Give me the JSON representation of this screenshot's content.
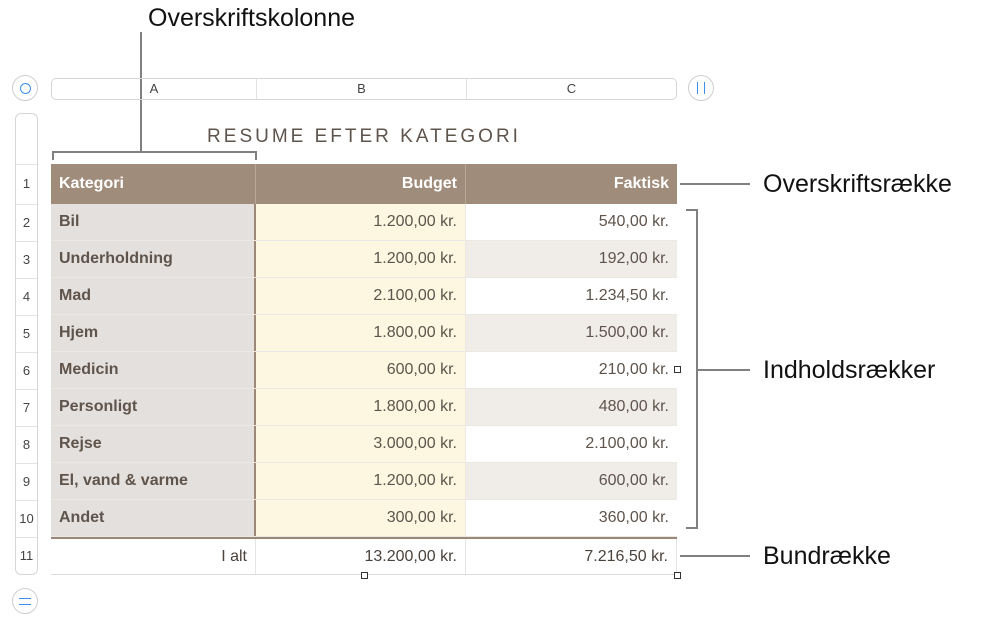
{
  "callouts": {
    "header_column": "Overskriftskolonne",
    "header_row": "Overskriftsrække",
    "body_rows": "Indholdsrækker",
    "footer_row": "Bundrække"
  },
  "column_letters": [
    "A",
    "B",
    "C"
  ],
  "row_numbers": [
    "1",
    "2",
    "3",
    "4",
    "5",
    "6",
    "7",
    "8",
    "9",
    "10",
    "11"
  ],
  "table": {
    "title": "RESUME EFTER KATEGORI",
    "headers": [
      "Kategori",
      "Budget",
      "Faktisk"
    ],
    "rows": [
      [
        "Bil",
        "1.200,00 kr.",
        "540,00 kr."
      ],
      [
        "Underholdning",
        "1.200,00 kr.",
        "192,00 kr."
      ],
      [
        "Mad",
        "2.100,00 kr.",
        "1.234,50 kr."
      ],
      [
        "Hjem",
        "1.800,00 kr.",
        "1.500,00 kr."
      ],
      [
        "Medicin",
        "600,00 kr.",
        "210,00 kr."
      ],
      [
        "Personligt",
        "1.800,00 kr.",
        "480,00 kr."
      ],
      [
        "Rejse",
        "3.000,00 kr.",
        "2.100,00 kr."
      ],
      [
        "El, vand & varme",
        "1.200,00 kr.",
        "600,00 kr."
      ],
      [
        "Andet",
        "300,00 kr.",
        "360,00 kr."
      ]
    ],
    "footer": [
      "I alt",
      "13.200,00 kr.",
      "7.216,50 kr."
    ]
  },
  "colors": {
    "header_bg": "#a08c7a",
    "header_column_bg": "#e4e0dd",
    "budget_column_bg": "#fdf6e0",
    "alt_row_bg": "#f0ede9",
    "accent": "#3a8ef0"
  },
  "icons": {
    "select_table": "circle-icon",
    "add_columns": "column-handle-icon",
    "add_rows": "row-handle-icon"
  }
}
